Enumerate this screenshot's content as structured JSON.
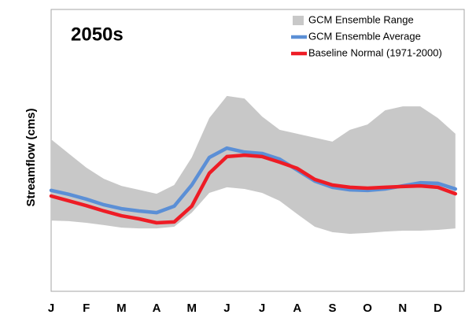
{
  "chart_data": {
    "type": "range-line",
    "title": "2050s",
    "y_label": "Streamflow (cms)",
    "categories": [
      "J",
      null,
      "F",
      null,
      "M",
      null,
      "A",
      null,
      "M",
      null,
      "J",
      null,
      "J",
      null,
      "A",
      null,
      "S",
      null,
      "O",
      null,
      "N",
      null,
      "D",
      null
    ],
    "ylim": [
      0,
      100
    ],
    "series": [
      {
        "name": "GCM Ensemble Range",
        "color": "#c8c8c8",
        "low": [
          25.1,
          24.9,
          24.3,
          23.5,
          22.6,
          22.3,
          22.3,
          22.9,
          27.9,
          34.9,
          36.9,
          36.3,
          34.9,
          32.1,
          27.4,
          22.9,
          21.0,
          20.4,
          20.7,
          21.2,
          21.5,
          21.5,
          21.8,
          22.3
        ],
        "high": [
          53.9,
          48.9,
          43.9,
          39.9,
          37.4,
          36.0,
          34.6,
          37.7,
          47.5,
          61.5,
          69.3,
          68.4,
          62.0,
          57.3,
          55.9,
          54.5,
          53.1,
          57.3,
          59.2,
          64.2,
          65.6,
          65.6,
          61.5,
          55.9
        ]
      },
      {
        "name": "GCM Ensemble Average",
        "color": "#5b8fd6",
        "values": [
          35.8,
          34.4,
          32.7,
          30.7,
          29.3,
          28.5,
          27.9,
          30.2,
          37.7,
          47.5,
          50.8,
          49.4,
          48.9,
          46.9,
          43.0,
          39.1,
          36.9,
          36.0,
          35.8,
          36.3,
          37.4,
          38.5,
          38.3,
          36.3
        ]
      },
      {
        "name": "Baseline Normal (1971-2000)",
        "color": "#ee1c25",
        "values": [
          33.8,
          32.1,
          30.4,
          28.5,
          26.8,
          25.7,
          24.3,
          24.6,
          30.2,
          41.9,
          47.8,
          48.3,
          47.8,
          45.8,
          43.6,
          39.7,
          37.7,
          36.9,
          36.6,
          36.9,
          37.2,
          37.4,
          36.9,
          34.6
        ]
      }
    ]
  }
}
